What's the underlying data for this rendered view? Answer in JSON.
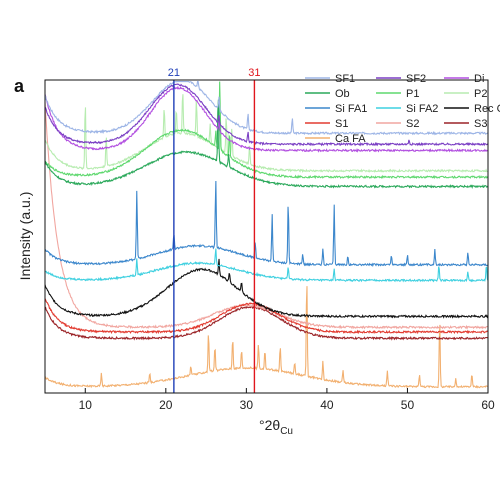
{
  "panel_label": "a",
  "chart_data": {
    "type": "line",
    "title": "",
    "xlabel_main": "°2θ",
    "xlabel_sub": "Cu",
    "ylabel": "Intensity (a.u.)",
    "xlim": [
      5,
      60
    ],
    "x_ticks": [
      10,
      20,
      30,
      40,
      50,
      60
    ],
    "grid": false,
    "legend_position": "top-right",
    "markers": [
      {
        "x": 21,
        "label": "21",
        "color": "#1f3fb8"
      },
      {
        "x": 31,
        "label": "31",
        "color": "#e0161d"
      }
    ],
    "series": [
      {
        "name": "SF1",
        "color": "#9db5e6",
        "offset": 0.83,
        "hump_center": 22,
        "hump_height": 0.17,
        "hump_width": 3.6,
        "low_amp": 0.12,
        "peaks": [
          [
            22.5,
            0.05
          ],
          [
            24,
            0.03
          ],
          [
            26.6,
            0.04
          ],
          [
            30.2,
            0.05
          ],
          [
            35.7,
            0.05
          ]
        ]
      },
      {
        "name": "SF2",
        "color": "#7b3fc4",
        "offset": 0.795,
        "hump_center": 21.5,
        "hump_height": 0.19,
        "hump_width": 3.5,
        "low_amp": 0.12,
        "peaks": [
          [
            26.6,
            0.03
          ],
          [
            30.2,
            0.03
          ],
          [
            50.2,
            0.015
          ]
        ]
      },
      {
        "name": "Di",
        "color": "#b24fe0",
        "offset": 0.775,
        "hump_center": 21.5,
        "hump_height": 0.2,
        "hump_width": 3.4,
        "low_amp": 0.18,
        "peaks": [
          [
            26.6,
            0.03
          ]
        ]
      },
      {
        "name": "Ob",
        "color": "#2aa85a",
        "offset": 0.66,
        "hump_center": 22.5,
        "hump_height": 0.11,
        "hump_width": 5,
        "low_amp": 0.08,
        "peaks": [
          [
            26.5,
            0.22
          ],
          [
            27.8,
            0.04
          ]
        ]
      },
      {
        "name": "P1",
        "color": "#5ed86e",
        "offset": 0.69,
        "hump_center": 22,
        "hump_height": 0.15,
        "hump_width": 4.5,
        "low_amp": 0.05,
        "peaks": [
          [
            26.7,
            0.23
          ],
          [
            27.9,
            0.08
          ],
          [
            26.2,
            0.05
          ]
        ]
      },
      {
        "name": "P2",
        "color": "#b7ecb0",
        "offset": 0.71,
        "hump_center": 22,
        "hump_height": 0.12,
        "hump_width": 4.5,
        "low_amp": 0.1,
        "peaks": [
          [
            10,
            0.22
          ],
          [
            12.6,
            0.1
          ],
          [
            19.8,
            0.1
          ],
          [
            21.3,
            0.08
          ],
          [
            22.1,
            0.14
          ],
          [
            23.8,
            0.12
          ],
          [
            25.5,
            0.06
          ],
          [
            26.7,
            0.09
          ],
          [
            27.5,
            0.12
          ],
          [
            28.2,
            0.09
          ],
          [
            30.4,
            0.06
          ]
        ]
      },
      {
        "name": "Si FA1",
        "color": "#3c87cc",
        "offset": 0.41,
        "hump_center": 24,
        "hump_height": 0.06,
        "hump_width": 5,
        "low_amp": 0.05,
        "peaks": [
          [
            16.4,
            0.22
          ],
          [
            21,
            0.05
          ],
          [
            26.2,
            0.22
          ],
          [
            31.1,
            0.05
          ],
          [
            33.2,
            0.15
          ],
          [
            35.2,
            0.2
          ],
          [
            37,
            0.03
          ],
          [
            39.5,
            0.05
          ],
          [
            40.9,
            0.19
          ],
          [
            42.6,
            0.03
          ],
          [
            48,
            0.03
          ],
          [
            50,
            0.03
          ],
          [
            53.4,
            0.05
          ],
          [
            57.5,
            0.04
          ]
        ]
      },
      {
        "name": "Si FA2",
        "color": "#3fd0e0",
        "offset": 0.36,
        "hump_center": 24,
        "hump_height": 0.055,
        "hump_width": 5,
        "low_amp": 0.03,
        "peaks": [
          [
            16.4,
            0.05
          ],
          [
            26.2,
            0.05
          ],
          [
            35.2,
            0.04
          ],
          [
            40.9,
            0.04
          ],
          [
            53.9,
            0.05
          ],
          [
            57.5,
            0.03
          ],
          [
            59.8,
            0.05
          ]
        ]
      },
      {
        "name": "Rec Gl",
        "color": "#111111",
        "offset": 0.245,
        "hump_center": 24.5,
        "hump_height": 0.15,
        "hump_width": 4.3,
        "low_amp": 0.1,
        "peaks": [
          [
            26.6,
            0.05
          ],
          [
            27.9,
            0.03
          ],
          [
            29.4,
            0.03
          ]
        ]
      },
      {
        "name": "S1",
        "color": "#e23b30",
        "offset": 0.195,
        "hump_center": 30.5,
        "hump_height": 0.09,
        "hump_width": 3.6,
        "low_amp": 0.11,
        "peaks": []
      },
      {
        "name": "S2",
        "color": "#f1a6a0",
        "offset": 0.21,
        "hump_center": 30,
        "hump_height": 0.07,
        "hump_width": 4,
        "low_amp": 0.72,
        "peaks": []
      },
      {
        "name": "S3",
        "color": "#9b2428",
        "offset": 0.175,
        "hump_center": 30.5,
        "hump_height": 0.1,
        "hump_width": 3.8,
        "low_amp": 0.1,
        "peaks": []
      },
      {
        "name": "Ca FA",
        "color": "#f2b070",
        "offset": 0.02,
        "hump_center": 30,
        "hump_height": 0.06,
        "hump_width": 7,
        "low_amp": 0.03,
        "peaks": [
          [
            12,
            0.04
          ],
          [
            18,
            0.03
          ],
          [
            23.1,
            0.03
          ],
          [
            25.3,
            0.13
          ],
          [
            26.1,
            0.08
          ],
          [
            28.3,
            0.1
          ],
          [
            29.4,
            0.06
          ],
          [
            31.5,
            0.08
          ],
          [
            32.3,
            0.06
          ],
          [
            34.2,
            0.08
          ],
          [
            36,
            0.04
          ],
          [
            37.5,
            0.32
          ],
          [
            39.5,
            0.06
          ],
          [
            42,
            0.04
          ],
          [
            47.5,
            0.05
          ],
          [
            51.5,
            0.04
          ],
          [
            54,
            0.22
          ],
          [
            56,
            0.03
          ],
          [
            58,
            0.04
          ]
        ]
      }
    ]
  }
}
